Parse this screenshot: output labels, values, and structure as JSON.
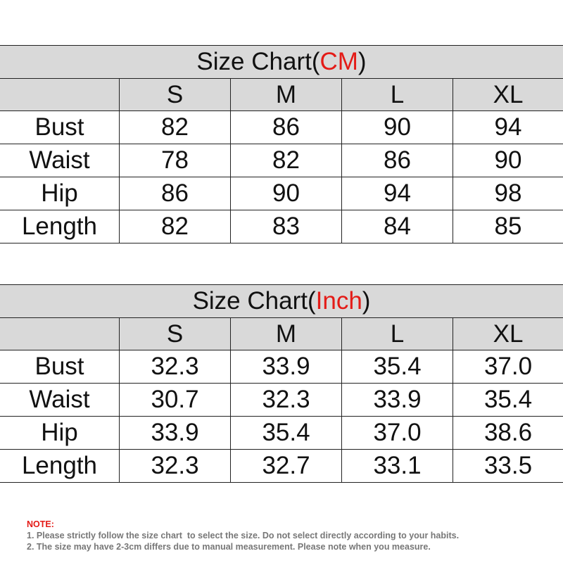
{
  "tables": [
    {
      "title": [
        "Size Chart(",
        "CM",
        ")"
      ],
      "header": [
        "S",
        "M",
        "L",
        "XL"
      ],
      "rows": [
        [
          "Bust",
          "82",
          "86",
          "90",
          "94"
        ],
        [
          "Waist",
          "78",
          "82",
          "86",
          "90"
        ],
        [
          "Hip",
          "86",
          "90",
          "94",
          "98"
        ],
        [
          "Length",
          "82",
          "83",
          "84",
          "85"
        ]
      ]
    },
    {
      "title": [
        "Size Chart(",
        "Inch",
        ")"
      ],
      "header": [
        "S",
        "M",
        "L",
        "XL"
      ],
      "rows": [
        [
          "Bust",
          "32.3",
          "33.9",
          "35.4",
          "37.0"
        ],
        [
          "Waist",
          "30.7",
          "32.3",
          "33.9",
          "35.4"
        ],
        [
          "Hip",
          "33.9",
          "35.4",
          "37.0",
          "38.6"
        ],
        [
          "Length",
          "32.3",
          "32.7",
          "33.1",
          "33.5"
        ]
      ]
    }
  ],
  "note": {
    "label": "NOTE:",
    "lines": [
      "1. Please strictly follow the size chart  to select the size. Do not select directly according to your habits.",
      "2. The size may have 2-3cm differs due to manual measurement. Please note when you measure."
    ]
  }
}
